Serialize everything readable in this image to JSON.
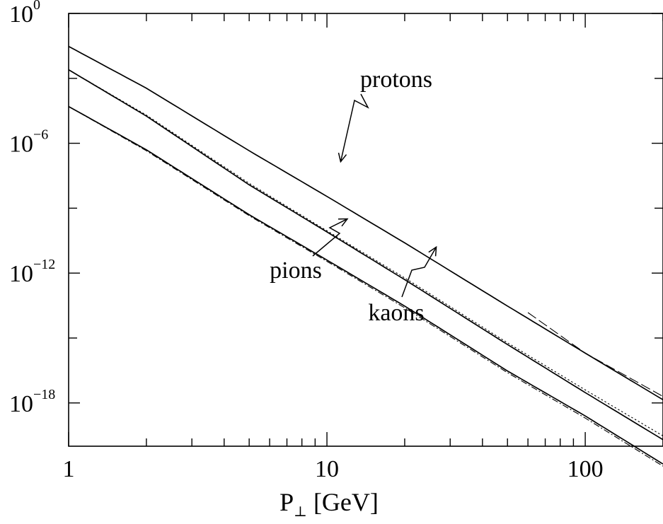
{
  "chart_data": {
    "type": "line",
    "x_scale": "log",
    "y_scale": "log",
    "xlim": [
      1,
      200
    ],
    "ylim": [
      1e-20,
      1
    ],
    "xlabel": "P",
    "xlabel_sub": "⊥",
    "xlabel_unit": "[GeV]",
    "ylabel": "",
    "x_ticks": [
      {
        "value": 1,
        "label": "1"
      },
      {
        "value": 10,
        "label": "10"
      },
      {
        "value": 100,
        "label": "100"
      }
    ],
    "y_ticks": [
      {
        "value": 1,
        "base": "10",
        "exp": "0"
      },
      {
        "value": 1e-06,
        "base": "10",
        "exp": "−6"
      },
      {
        "value": 1e-12,
        "base": "10",
        "exp": "−12"
      },
      {
        "value": 1e-18,
        "base": "10",
        "exp": "−18"
      }
    ],
    "series": [
      {
        "name": "protons",
        "line": "solid",
        "x": [
          1,
          2,
          5,
          10,
          20,
          50,
          100,
          200
        ],
        "y": [
          0.03,
          0.00035,
          4.5e-07,
          3.5e-09,
          2.5e-11,
          3e-14,
          2e-16,
          1.4e-18
        ]
      },
      {
        "name": "protons",
        "line": "dashed",
        "x": [
          60,
          100,
          200
        ],
        "y": [
          1.5e-14,
          2e-16,
          2e-18
        ]
      },
      {
        "name": "kaons",
        "line": "solid",
        "x": [
          1,
          2,
          5,
          10,
          20,
          50,
          100,
          200
        ],
        "y": [
          0.0025,
          1.8e-05,
          1.2e-08,
          8e-11,
          5e-13,
          5e-16,
          3e-18,
          2e-20
        ]
      },
      {
        "name": "kaons",
        "line": "dotted",
        "x": [
          1,
          2,
          5,
          10,
          20,
          50,
          100,
          200
        ],
        "y": [
          0.0025,
          2e-05,
          1.4e-08,
          9e-11,
          6e-13,
          6e-16,
          4e-18,
          3e-20
        ]
      },
      {
        "name": "pions",
        "line": "solid",
        "x": [
          1,
          2,
          5,
          10,
          20,
          50,
          100,
          200
        ],
        "y": [
          5e-05,
          5e-07,
          5e-10,
          4e-12,
          3e-14,
          3e-17,
          2.5e-19,
          1.5e-21
        ]
      },
      {
        "name": "pions",
        "line": "dash-dot",
        "x": [
          1,
          2,
          5,
          10,
          20,
          50,
          100,
          200
        ],
        "y": [
          5e-05,
          4.5e-07,
          4.5e-10,
          3.5e-12,
          2.5e-14,
          2.5e-17,
          2e-19,
          1.2e-21
        ]
      }
    ],
    "annotations": [
      {
        "text": "protons",
        "arrow_to": {
          "x": 11.3,
          "y": 1.4e-07
        }
      },
      {
        "text": "kaons",
        "arrow_to": {
          "x": 26.5,
          "y": 1.6e-11
        }
      },
      {
        "text": "pions",
        "arrow_to": {
          "x": 12.0,
          "y": 3.2e-10
        }
      }
    ]
  }
}
